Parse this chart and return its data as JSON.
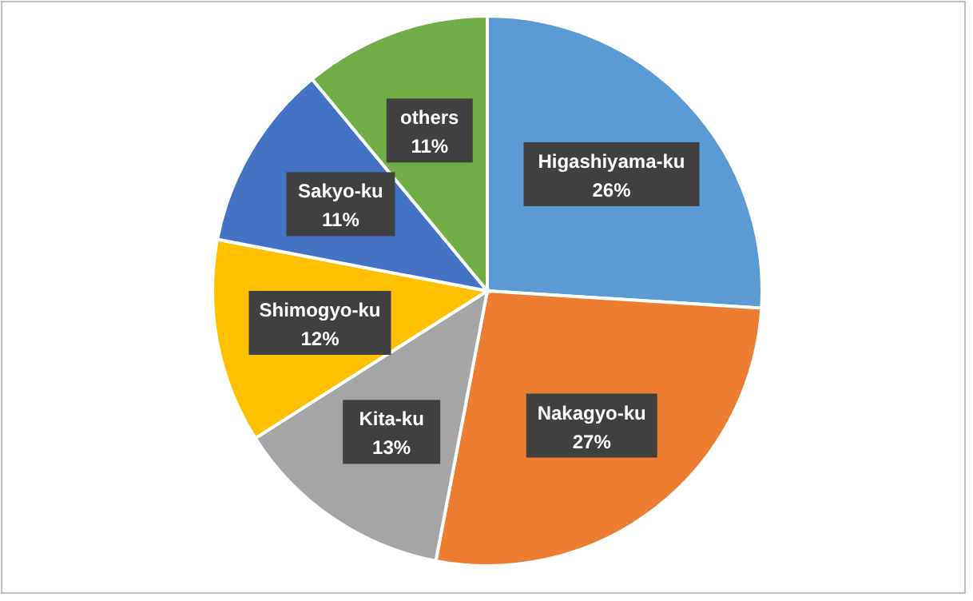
{
  "chart_data": {
    "type": "pie",
    "categories": [
      "Higashiyama-ku",
      "Nakagyo-ku",
      "Kita-ku",
      "Shimogyo-ku",
      "Sakyo-ku",
      "others"
    ],
    "values": [
      26,
      27,
      13,
      12,
      11,
      11
    ],
    "colors": [
      "#5b9bd5",
      "#ed7d31",
      "#a5a5a5",
      "#ffc000",
      "#4472c4",
      "#70ad47"
    ],
    "value_labels": [
      "26%",
      "27%",
      "13%",
      "12%",
      "11%",
      "11%"
    ],
    "legend": false
  }
}
